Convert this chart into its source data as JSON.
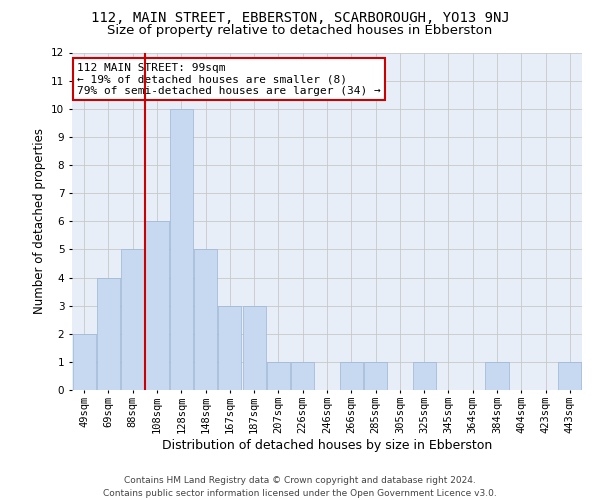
{
  "title": "112, MAIN STREET, EBBERSTON, SCARBOROUGH, YO13 9NJ",
  "subtitle": "Size of property relative to detached houses in Ebberston",
  "xlabel": "Distribution of detached houses by size in Ebberston",
  "ylabel": "Number of detached properties",
  "categories": [
    "49sqm",
    "69sqm",
    "88sqm",
    "108sqm",
    "128sqm",
    "148sqm",
    "167sqm",
    "187sqm",
    "207sqm",
    "226sqm",
    "246sqm",
    "266sqm",
    "285sqm",
    "305sqm",
    "325sqm",
    "345sqm",
    "364sqm",
    "384sqm",
    "404sqm",
    "423sqm",
    "443sqm"
  ],
  "values": [
    2,
    4,
    5,
    6,
    10,
    5,
    3,
    3,
    1,
    1,
    0,
    1,
    1,
    0,
    1,
    0,
    0,
    1,
    0,
    0,
    1
  ],
  "bar_color": "#c6d9f1",
  "bar_edge_color": "#9ab5d4",
  "red_line_x": 2.5,
  "annotation_line1": "112 MAIN STREET: 99sqm",
  "annotation_line2": "← 19% of detached houses are smaller (8)",
  "annotation_line3": "79% of semi-detached houses are larger (34) →",
  "annotation_box_color": "white",
  "annotation_box_edge_color": "#cc0000",
  "red_line_color": "#cc0000",
  "ylim": [
    0,
    12
  ],
  "yticks": [
    0,
    1,
    2,
    3,
    4,
    5,
    6,
    7,
    8,
    9,
    10,
    11,
    12
  ],
  "grid_color": "#c8c8c8",
  "background_color": "#e8eef7",
  "footer_line1": "Contains HM Land Registry data © Crown copyright and database right 2024.",
  "footer_line2": "Contains public sector information licensed under the Open Government Licence v3.0.",
  "title_fontsize": 10,
  "subtitle_fontsize": 9.5,
  "xlabel_fontsize": 9,
  "ylabel_fontsize": 8.5,
  "tick_fontsize": 7.5,
  "annotation_fontsize": 8,
  "footer_fontsize": 6.5
}
